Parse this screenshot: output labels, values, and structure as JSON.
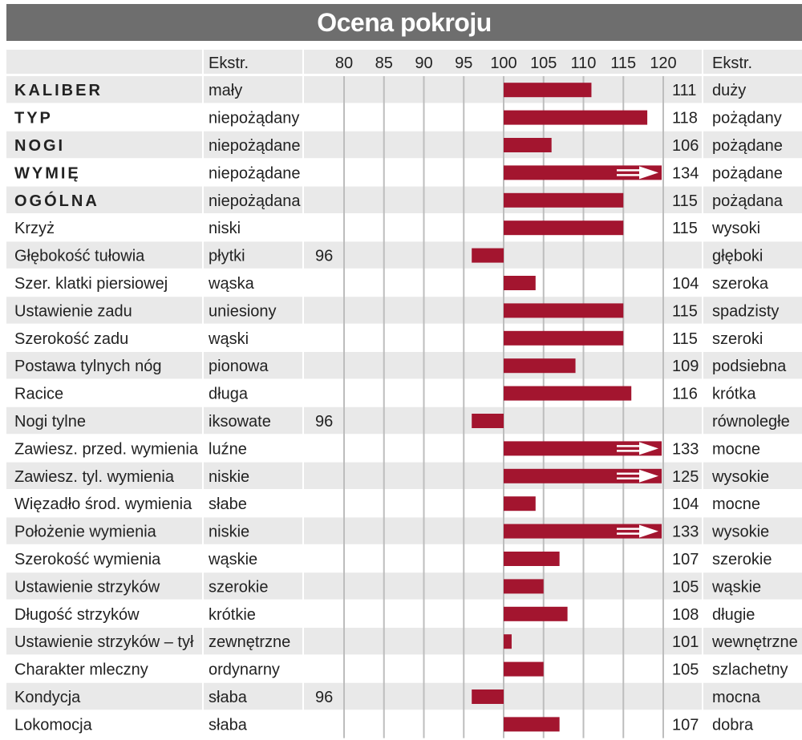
{
  "title": "Ocena pokroju",
  "header": {
    "ekstr_left": "Ekstr.",
    "ekstr_right": "Ekstr."
  },
  "colors": {
    "bar": "#a3152f",
    "band": "#e9e9e9",
    "title_bg": "#6e6e6e",
    "grid": "#bdbdbd"
  },
  "chart_data": {
    "type": "bar",
    "orientation": "horizontal",
    "baseline": 100,
    "xlim": [
      75,
      120
    ],
    "ticks": [
      80,
      85,
      90,
      95,
      100,
      105,
      110,
      115,
      120
    ],
    "rows": [
      {
        "trait": "KALIBER",
        "bold": true,
        "low": "mały",
        "high": "duży",
        "value": 111,
        "label": "111",
        "label_side": "right",
        "overflow": false
      },
      {
        "trait": "TYP",
        "bold": true,
        "low": "niepożądany",
        "high": "pożądany",
        "value": 118,
        "label": "118",
        "label_side": "right",
        "overflow": false
      },
      {
        "trait": "NOGI",
        "bold": true,
        "low": "niepożądane",
        "high": "pożądane",
        "value": 106,
        "label": "106",
        "label_side": "right",
        "overflow": false
      },
      {
        "trait": "WYMIĘ",
        "bold": true,
        "low": "niepożądane",
        "high": "pożądane",
        "value": 134,
        "label": "134",
        "label_side": "right",
        "overflow": true
      },
      {
        "trait": "OGÓLNA",
        "bold": true,
        "low": "niepożądana",
        "high": "pożądana",
        "value": 115,
        "label": "115",
        "label_side": "right",
        "overflow": false
      },
      {
        "trait": "Krzyż",
        "bold": false,
        "low": "niski",
        "high": "wysoki",
        "value": 115,
        "label": "115",
        "label_side": "right",
        "overflow": false
      },
      {
        "trait": "Głębokość tułowia",
        "bold": false,
        "low": "płytki",
        "high": "głęboki",
        "value": 96,
        "label": "96",
        "label_side": "left",
        "overflow": false
      },
      {
        "trait": "Szer. klatki piersiowej",
        "bold": false,
        "low": "wąska",
        "high": "szeroka",
        "value": 104,
        "label": "104",
        "label_side": "right",
        "overflow": false
      },
      {
        "trait": "Ustawienie zadu",
        "bold": false,
        "low": "uniesiony",
        "high": "spadzisty",
        "value": 115,
        "label": "115",
        "label_side": "right",
        "overflow": false
      },
      {
        "trait": "Szerokość zadu",
        "bold": false,
        "low": "wąski",
        "high": "szeroki",
        "value": 115,
        "label": "115",
        "label_side": "right",
        "overflow": false
      },
      {
        "trait": "Postawa tylnych nóg",
        "bold": false,
        "low": "pionowa",
        "high": "podsiebna",
        "value": 109,
        "label": "109",
        "label_side": "right",
        "overflow": false
      },
      {
        "trait": "Racice",
        "bold": false,
        "low": "długa",
        "high": "krótka",
        "value": 116,
        "label": "116",
        "label_side": "right",
        "overflow": false
      },
      {
        "trait": "Nogi tylne",
        "bold": false,
        "low": "iksowate",
        "high": "równoległe",
        "value": 96,
        "label": "96",
        "label_side": "left",
        "overflow": false
      },
      {
        "trait": "Zawiesz. przed. wymienia",
        "bold": false,
        "low": "luźne",
        "high": "mocne",
        "value": 133,
        "label": "133",
        "label_side": "right",
        "overflow": true
      },
      {
        "trait": "Zawiesz. tyl. wymienia",
        "bold": false,
        "low": "niskie",
        "high": "wysokie",
        "value": 125,
        "label": "125",
        "label_side": "right",
        "overflow": true
      },
      {
        "trait": "Więzadło środ. wymienia",
        "bold": false,
        "low": "słabe",
        "high": "mocne",
        "value": 104,
        "label": "104",
        "label_side": "right",
        "overflow": false
      },
      {
        "trait": "Położenie wymienia",
        "bold": false,
        "low": "niskie",
        "high": "wysokie",
        "value": 133,
        "label": "133",
        "label_side": "right",
        "overflow": true
      },
      {
        "trait": "Szerokość wymienia",
        "bold": false,
        "low": "wąskie",
        "high": "szerokie",
        "value": 107,
        "label": "107",
        "label_side": "right",
        "overflow": false
      },
      {
        "trait": "Ustawienie strzyków",
        "bold": false,
        "low": "szerokie",
        "high": "wąskie",
        "value": 105,
        "label": "105",
        "label_side": "right",
        "overflow": false
      },
      {
        "trait": "Długość strzyków",
        "bold": false,
        "low": "krótkie",
        "high": "długie",
        "value": 108,
        "label": "108",
        "label_side": "right",
        "overflow": false
      },
      {
        "trait": "Ustawienie strzyków – tył",
        "bold": false,
        "low": "zewnętrzne",
        "high": "wewnętrzne",
        "value": 101,
        "label": "101",
        "label_side": "right",
        "overflow": false
      },
      {
        "trait": "Charakter mleczny",
        "bold": false,
        "low": "ordynarny",
        "high": "szlachetny",
        "value": 105,
        "label": "105",
        "label_side": "right",
        "overflow": false
      },
      {
        "trait": "Kondycja",
        "bold": false,
        "low": "słaba",
        "high": "mocna",
        "value": 96,
        "label": "96",
        "label_side": "left",
        "overflow": false
      },
      {
        "trait": "Lokomocja",
        "bold": false,
        "low": "słaba",
        "high": "dobra",
        "value": 107,
        "label": "107",
        "label_side": "right",
        "overflow": false
      }
    ]
  }
}
